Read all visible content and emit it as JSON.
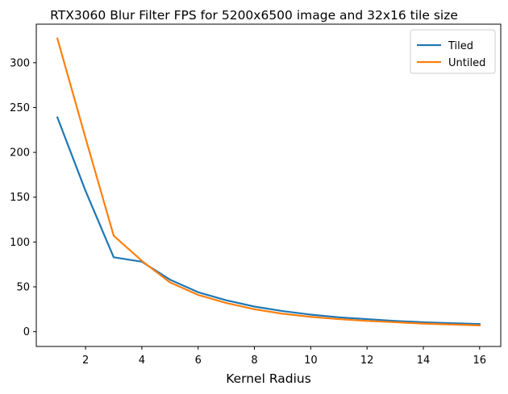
{
  "chart_data": {
    "type": "line",
    "title": "RTX3060 Blur Filter FPS for 5200x6500 image and 32x16 tile size",
    "xlabel": "Kernel Radius",
    "ylabel": "",
    "x": [
      1,
      2,
      3,
      4,
      5,
      6,
      7,
      8,
      9,
      10,
      11,
      12,
      13,
      14,
      15,
      16
    ],
    "series": [
      {
        "name": "Tiled",
        "color": "#1f77b4",
        "values": [
          239,
          157,
          83,
          78,
          58,
          44,
          35,
          28,
          23,
          19,
          16,
          14,
          12,
          10.5,
          9.5,
          8.5
        ]
      },
      {
        "name": "Untiled",
        "color": "#ff7f0e",
        "values": [
          327,
          216,
          107,
          79,
          55,
          41,
          32,
          25,
          20,
          16.5,
          14,
          12,
          10.5,
          9,
          8,
          7
        ]
      }
    ],
    "xlim": [
      0.25,
      16.75
    ],
    "ylim": [
      -16.5,
      343
    ],
    "xticks": [
      2,
      4,
      6,
      8,
      10,
      12,
      14,
      16
    ],
    "yticks": [
      0,
      50,
      100,
      150,
      200,
      250,
      300
    ],
    "grid": false,
    "legend": "top-right"
  }
}
